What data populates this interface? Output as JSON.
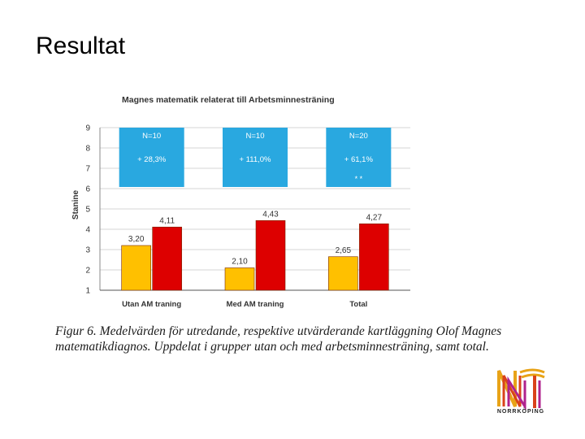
{
  "slide": {
    "title": "Resultat"
  },
  "chart_data": {
    "type": "bar",
    "title": "Magnes matematik relaterat till Arbetsminnesträning",
    "ylabel": "Stanine",
    "xlabel": "",
    "ylim": [
      1,
      9
    ],
    "yticks": [
      1,
      2,
      3,
      4,
      5,
      6,
      7,
      8,
      9
    ],
    "categories": [
      "Utan AM traning",
      "Med AM traning",
      "Total"
    ],
    "series": [
      {
        "name": "Utredande kartläggning",
        "color": "#FFC000",
        "values": [
          3.2,
          2.1,
          2.65
        ],
        "labels": [
          "3,20",
          "2,10",
          "2,65"
        ]
      },
      {
        "name": "Utvärderande kartläggning",
        "color": "#DD0000",
        "values": [
          4.11,
          4.43,
          4.27
        ],
        "labels": [
          "4,11",
          "4,43",
          "4,27"
        ]
      }
    ],
    "info_boxes": [
      {
        "n": "N=10",
        "change": "+ 28,3%",
        "significance": ""
      },
      {
        "n": "N=10",
        "change": "+ 111,0%",
        "significance": ""
      },
      {
        "n": "N=20",
        "change": "+ 61,1%",
        "significance": "* *"
      }
    ],
    "box_color": "#29A8E0",
    "grid": true,
    "legend": "none"
  },
  "caption": "Figur 6. Medelvärden för utredande, respektive utvärderande kartläggning Olof Magnes matematikdiagnos. Uppdelat i grupper utan och med arbetsminnesträning, samt total.",
  "logo": {
    "text": "NORRKÖPING"
  }
}
